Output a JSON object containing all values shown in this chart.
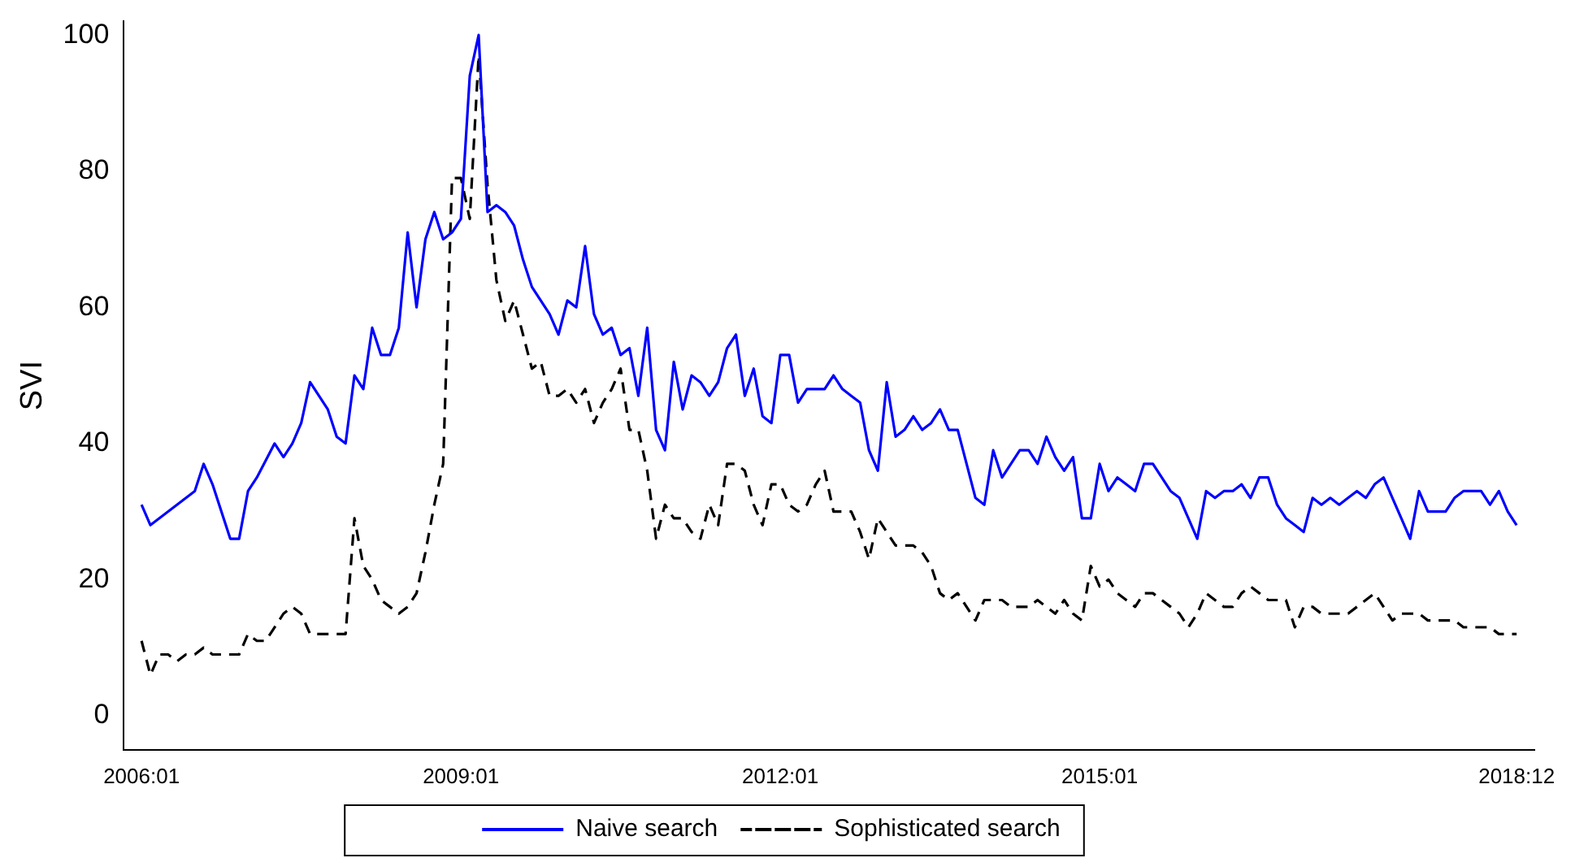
{
  "chart_data": {
    "type": "line",
    "ylabel": "SVI",
    "x": [
      "2006-01",
      "2006-02",
      "2006-03",
      "2006-04",
      "2006-05",
      "2006-06",
      "2006-07",
      "2006-08",
      "2006-09",
      "2006-10",
      "2006-11",
      "2006-12",
      "2007-01",
      "2007-02",
      "2007-03",
      "2007-04",
      "2007-05",
      "2007-06",
      "2007-07",
      "2007-08",
      "2007-09",
      "2007-10",
      "2007-11",
      "2007-12",
      "2008-01",
      "2008-02",
      "2008-03",
      "2008-04",
      "2008-05",
      "2008-06",
      "2008-07",
      "2008-08",
      "2008-09",
      "2008-10",
      "2008-11",
      "2008-12",
      "2009-01",
      "2009-02",
      "2009-03",
      "2009-04",
      "2009-05",
      "2009-06",
      "2009-07",
      "2009-08",
      "2009-09",
      "2009-10",
      "2009-11",
      "2009-12",
      "2010-01",
      "2010-02",
      "2010-03",
      "2010-04",
      "2010-05",
      "2010-06",
      "2010-07",
      "2010-08",
      "2010-09",
      "2010-10",
      "2010-11",
      "2010-12",
      "2011-01",
      "2011-02",
      "2011-03",
      "2011-04",
      "2011-05",
      "2011-06",
      "2011-07",
      "2011-08",
      "2011-09",
      "2011-10",
      "2011-11",
      "2011-12",
      "2012-01",
      "2012-02",
      "2012-03",
      "2012-04",
      "2012-05",
      "2012-06",
      "2012-07",
      "2012-08",
      "2012-09",
      "2012-10",
      "2012-11",
      "2012-12",
      "2013-01",
      "2013-02",
      "2013-03",
      "2013-04",
      "2013-05",
      "2013-06",
      "2013-07",
      "2013-08",
      "2013-09",
      "2013-10",
      "2013-11",
      "2013-12",
      "2014-01",
      "2014-02",
      "2014-03",
      "2014-04",
      "2014-05",
      "2014-06",
      "2014-07",
      "2014-08",
      "2014-09",
      "2014-10",
      "2014-11",
      "2014-12",
      "2015-01",
      "2015-02",
      "2015-03",
      "2015-04",
      "2015-05",
      "2015-06",
      "2015-07",
      "2015-08",
      "2015-09",
      "2015-10",
      "2015-11",
      "2015-12",
      "2016-01",
      "2016-02",
      "2016-03",
      "2016-04",
      "2016-05",
      "2016-06",
      "2016-07",
      "2016-08",
      "2016-09",
      "2016-10",
      "2016-11",
      "2016-12",
      "2017-01",
      "2017-02",
      "2017-03",
      "2017-04",
      "2017-05",
      "2017-06",
      "2017-07",
      "2017-08",
      "2017-09",
      "2017-10",
      "2017-11",
      "2017-12",
      "2018-01",
      "2018-02",
      "2018-03",
      "2018-04",
      "2018-05",
      "2018-06",
      "2018-07",
      "2018-08",
      "2018-09",
      "2018-10",
      "2018-11",
      "2018-12"
    ],
    "series": [
      {
        "name": "Naive search",
        "color": "#0000ff",
        "line_style": "solid",
        "x": [
          "2006-01",
          "2006-02",
          "2006-07",
          "2006-08",
          "2006-09",
          "2006-11",
          "2006-12",
          "2007-01",
          "2007-02",
          "2007-04",
          "2007-05",
          "2007-06",
          "2007-07",
          "2007-08",
          "2007-10",
          "2007-11",
          "2007-12",
          "2008-01",
          "2008-02",
          "2008-03",
          "2008-04",
          "2008-05",
          "2008-06",
          "2008-07",
          "2008-08",
          "2008-09",
          "2008-10",
          "2008-11",
          "2008-12",
          "2009-01",
          "2009-02",
          "2009-03",
          "2009-04",
          "2009-05",
          "2009-06",
          "2009-07",
          "2009-08",
          "2009-09",
          "2009-10",
          "2009-11",
          "2009-12",
          "2010-01",
          "2010-02",
          "2010-03",
          "2010-04",
          "2010-05",
          "2010-06",
          "2010-07",
          "2010-08",
          "2010-09",
          "2010-10",
          "2010-11",
          "2010-12",
          "2011-01",
          "2011-02",
          "2011-03",
          "2011-04",
          "2011-05",
          "2011-06",
          "2011-07",
          "2011-08",
          "2011-09",
          "2011-10",
          "2011-11",
          "2011-12",
          "2012-01",
          "2012-02",
          "2012-03",
          "2012-04",
          "2012-05",
          "2012-06",
          "2012-07",
          "2012-08",
          "2012-09",
          "2012-10",
          "2012-11",
          "2012-12",
          "2013-01",
          "2013-02",
          "2013-03",
          "2013-04",
          "2013-05",
          "2013-06",
          "2013-07",
          "2013-08",
          "2013-09",
          "2013-10",
          "2013-11",
          "2013-12",
          "2014-01",
          "2014-02",
          "2014-03",
          "2014-04",
          "2014-05",
          "2014-06",
          "2014-07",
          "2014-08",
          "2014-09",
          "2014-10",
          "2014-11",
          "2014-12",
          "2015-01",
          "2015-02",
          "2015-03",
          "2015-04",
          "2015-05",
          "2015-06",
          "2015-07",
          "2015-08",
          "2015-09",
          "2015-10",
          "2015-11",
          "2015-12",
          "2016-01",
          "2016-02",
          "2016-03",
          "2016-04",
          "2016-05",
          "2016-06",
          "2016-07",
          "2016-08",
          "2016-09",
          "2016-10",
          "2016-11",
          "2016-12",
          "2017-01",
          "2017-02",
          "2017-03",
          "2017-04",
          "2017-05",
          "2017-06",
          "2017-07",
          "2017-08",
          "2017-09",
          "2017-10",
          "2017-11",
          "2017-12",
          "2018-01",
          "2018-02",
          "2018-03",
          "2018-04",
          "2018-05",
          "2018-06",
          "2018-07",
          "2018-08",
          "2018-09",
          "2018-10",
          "2018-11",
          "2018-12"
        ],
        "values": [
          31,
          28,
          33,
          37,
          34,
          26,
          26,
          33,
          35,
          40,
          38,
          40,
          43,
          49,
          45,
          41,
          40,
          50,
          48,
          57,
          53,
          53,
          57,
          71,
          60,
          70,
          74,
          70,
          71,
          73,
          94,
          100,
          74,
          75,
          74,
          72,
          67,
          63,
          61,
          59,
          56,
          61,
          60,
          69,
          59,
          56,
          57,
          53,
          54,
          47,
          57,
          42,
          39,
          52,
          45,
          50,
          49,
          47,
          49,
          54,
          56,
          47,
          51,
          44,
          43,
          53,
          53,
          46,
          48,
          48,
          48,
          50,
          48,
          47,
          46,
          39,
          36,
          49,
          41,
          42,
          44,
          42,
          43,
          45,
          42,
          42,
          37,
          32,
          31,
          39,
          35,
          37,
          39,
          39,
          37,
          41,
          38,
          36,
          38,
          29,
          29,
          37,
          33,
          35,
          34,
          33,
          37,
          37,
          35,
          33,
          32,
          29,
          26,
          33,
          32,
          33,
          33,
          34,
          32,
          35,
          35,
          31,
          29,
          28,
          27,
          32,
          31,
          32,
          31,
          32,
          33,
          32,
          34,
          35,
          32,
          29,
          26,
          33,
          30,
          30,
          30,
          32,
          33,
          33,
          33,
          31,
          33,
          30,
          28
        ]
      },
      {
        "name": "Sophisticated search",
        "color": "#000000",
        "line_style": "dashed",
        "values": [
          11,
          6,
          9,
          9,
          8,
          9,
          9,
          10,
          9,
          9,
          9,
          9,
          12,
          11,
          11,
          13,
          15,
          16,
          15,
          12,
          12,
          12,
          12,
          12,
          29,
          22,
          20,
          17,
          16,
          15,
          16,
          18,
          24,
          31,
          37,
          79,
          79,
          73,
          97,
          78,
          64,
          58,
          61,
          56,
          51,
          52,
          47,
          47,
          48,
          46,
          48,
          43,
          46,
          48,
          51,
          42,
          42,
          36,
          26,
          31,
          29,
          29,
          27,
          26,
          31,
          28,
          37,
          37,
          36,
          31,
          28,
          34,
          34,
          31,
          30,
          31,
          34,
          36,
          30,
          30,
          30,
          27,
          23,
          29,
          27,
          25,
          25,
          25,
          24,
          22,
          18,
          17,
          18,
          16,
          14,
          17,
          17,
          17,
          16,
          16,
          16,
          17,
          16,
          15,
          17,
          15,
          14,
          22,
          19,
          20,
          18,
          17,
          16,
          18,
          18,
          17,
          16,
          15,
          13,
          15,
          18,
          17,
          16,
          16,
          18,
          19,
          18,
          17,
          17,
          17,
          13,
          16,
          16,
          15,
          15,
          15,
          15,
          16,
          17,
          18,
          16,
          14,
          15,
          15,
          15,
          14,
          14,
          14,
          14,
          13,
          13,
          13,
          13,
          12,
          12,
          12
        ]
      }
    ],
    "xlim": [
      "2005-11",
      "2019-02"
    ],
    "xticks": [
      {
        "value": "2006-01",
        "label": "2006:01"
      },
      {
        "value": "2009-01",
        "label": "2009:01"
      },
      {
        "value": "2012-01",
        "label": "2012:01"
      },
      {
        "value": "2015-01",
        "label": "2015:01"
      },
      {
        "value": "2018-12",
        "label": "2018:12"
      }
    ],
    "ylim": [
      -5,
      102
    ],
    "yticks": [
      0,
      20,
      40,
      60,
      80,
      100
    ],
    "grid": false,
    "legend": "bottom",
    "marker": "none"
  }
}
